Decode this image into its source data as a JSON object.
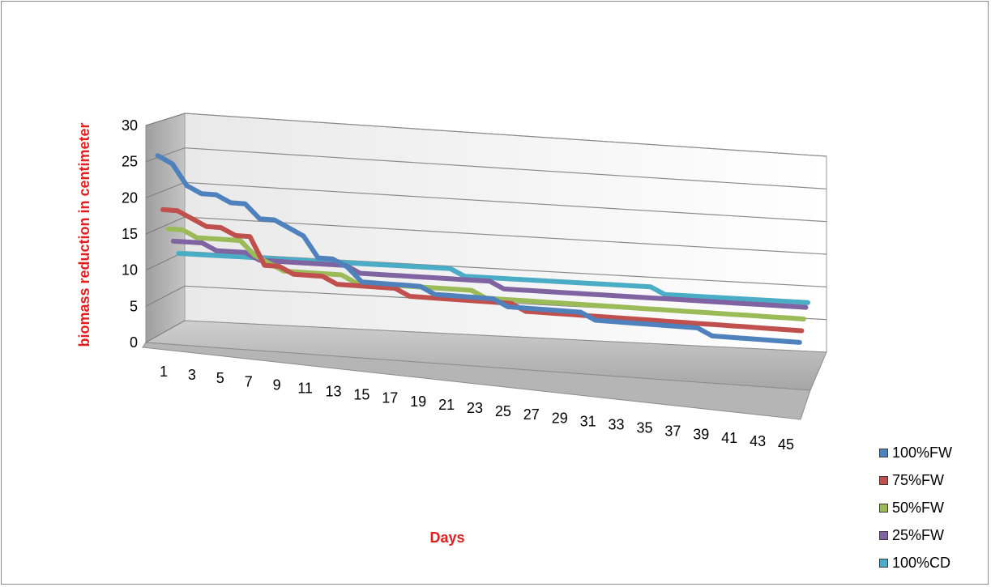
{
  "chart_data": {
    "type": "line",
    "title": "",
    "xlabel": "Days",
    "ylabel": "biomass reduction in centimeter",
    "ylim": [
      0,
      30
    ],
    "yticks": [
      "0",
      "5",
      "10",
      "15",
      "20",
      "25",
      "30"
    ],
    "xticks": [
      "1",
      "3",
      "5",
      "7",
      "9",
      "11",
      "13",
      "15",
      "17",
      "19",
      "21",
      "23",
      "25",
      "27",
      "29",
      "31",
      "33",
      "35",
      "37",
      "39",
      "41",
      "43",
      "45"
    ],
    "grid": true,
    "legend_position": "bottom-right",
    "x": [
      1,
      2,
      3,
      4,
      5,
      6,
      7,
      8,
      9,
      10,
      11,
      12,
      13,
      14,
      15,
      16,
      17,
      18,
      19,
      20,
      21,
      22,
      23,
      24,
      25,
      26,
      27,
      28,
      29,
      30,
      31,
      32,
      33,
      34,
      35,
      36,
      37,
      38,
      39,
      40,
      41,
      42,
      43,
      44,
      45
    ],
    "series": [
      {
        "name": "100%FW",
        "color": "#4f81bd",
        "values": [
          25,
          24,
          21,
          20,
          20,
          19,
          19,
          17,
          17,
          16,
          15,
          12,
          12,
          11,
          9,
          9,
          9,
          9,
          9,
          8,
          8,
          8,
          8,
          8,
          7,
          7,
          7,
          7,
          7,
          7,
          6,
          6,
          6,
          6,
          6,
          6,
          6,
          6,
          5,
          5,
          5,
          5,
          5,
          5,
          5
        ]
      },
      {
        "name": "75%FW",
        "color": "#c0504d",
        "values": [
          17,
          17,
          16,
          15,
          15,
          14,
          14,
          10,
          10,
          9,
          9,
          9,
          8,
          8,
          8,
          8,
          8,
          7,
          7,
          7,
          7,
          7,
          7,
          7,
          7,
          6,
          6,
          6,
          6,
          6,
          6,
          6,
          6,
          6,
          6,
          6,
          6,
          6,
          6,
          6,
          6,
          6,
          6,
          6,
          6
        ]
      },
      {
        "name": "50%FW",
        "color": "#9bbb59",
        "values": [
          14,
          14,
          13,
          13,
          13,
          13,
          11,
          10,
          9,
          9,
          9,
          9,
          9,
          8,
          8,
          8,
          8,
          8,
          8,
          8,
          8,
          8,
          7,
          7,
          7,
          7,
          7,
          7,
          7,
          7,
          7,
          7,
          7,
          7,
          7,
          7,
          7,
          7,
          7,
          7,
          7,
          7,
          7,
          7,
          7
        ]
      },
      {
        "name": "25%FW",
        "color": "#8064a2",
        "values": [
          12,
          12,
          12,
          11,
          11,
          11,
          10,
          10,
          10,
          10,
          10,
          10,
          10,
          9,
          9,
          9,
          9,
          9,
          9,
          9,
          9,
          9,
          9,
          8,
          8,
          8,
          8,
          8,
          8,
          8,
          8,
          8,
          8,
          8,
          8,
          8,
          8,
          8,
          8,
          8,
          8,
          8,
          8,
          8,
          8
        ]
      },
      {
        "name": "100%CD",
        "color": "#4bacc6",
        "values": [
          10,
          10,
          10,
          10,
          10,
          10,
          10,
          10,
          10,
          10,
          10,
          10,
          10,
          10,
          10,
          10,
          10,
          10,
          10,
          10,
          9,
          9,
          9,
          9,
          9,
          9,
          9,
          9,
          9,
          9,
          9,
          9,
          9,
          9,
          8,
          8,
          8,
          8,
          8,
          8,
          8,
          8,
          8,
          8,
          8
        ]
      }
    ]
  }
}
